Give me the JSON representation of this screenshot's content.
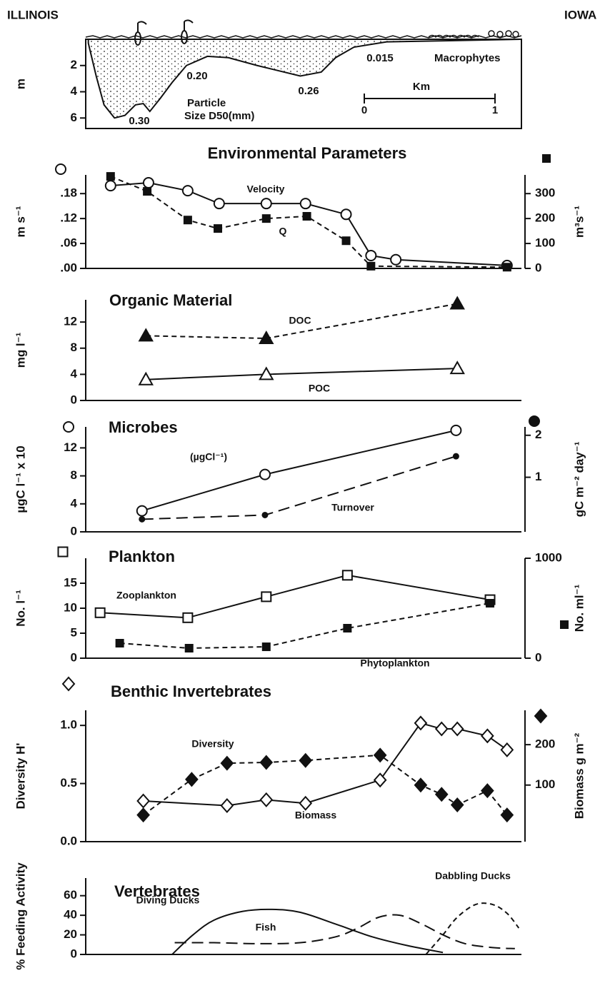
{
  "chart_data": [
    {
      "type": "area",
      "ylabel": "m",
      "x": [
        0.02,
        0.08,
        0.14,
        0.22,
        0.3,
        0.38,
        0.44,
        0.49,
        0.57,
        0.66,
        0.77,
        0.93,
        1.09,
        1.31,
        1.64,
        1.8,
        1.91,
        2.05,
        2.3,
        3.33
      ],
      "values": [
        0.3,
        2.8,
        5.0,
        6.0,
        5.8,
        5.0,
        4.9,
        5.5,
        4.5,
        3.3,
        2.0,
        1.3,
        1.4,
        2.0,
        2.8,
        2.5,
        1.4,
        0.6,
        0.2,
        0
      ],
      "xlim": [
        0,
        3.33
      ],
      "ylim": [
        6.8,
        0
      ],
      "yticks": [
        2,
        4,
        6
      ],
      "color": "#111111",
      "annotations": [
        "ILLINOIS",
        "IOWA",
        "0.30",
        "0.20",
        "0.26",
        "0.015",
        "Particle",
        "Size D50(mm)",
        "Macrophytes",
        "Km",
        "0",
        "1"
      ]
    },
    {
      "type": "line",
      "title": "Environmental Parameters",
      "ylabel": "m s⁻¹",
      "y2label": "m³s⁻¹",
      "xlim": [
        0,
        3.33
      ],
      "ylim": [
        0,
        0.225
      ],
      "y2lim": [
        0,
        375
      ],
      "yticks": [
        {
          "value": 0,
          "label": ".00"
        },
        {
          "value": 0.06,
          "label": ".06"
        },
        {
          "value": 0.12,
          "label": ".12"
        },
        {
          "value": 0.18,
          "label": ".18"
        }
      ],
      "y2ticks": [
        0,
        100,
        200,
        300
      ],
      "series": [
        {
          "name": "Velocity",
          "color": "#111111",
          "marker": "circle",
          "filled": false,
          "line_style": "solid",
          "x": [
            0.19,
            0.48,
            0.78,
            1.02,
            1.38,
            1.68,
            1.99,
            2.18,
            2.37,
            3.22
          ],
          "values": [
            0.199,
            0.206,
            0.187,
            0.156,
            0.156,
            0.156,
            0.13,
            0.031,
            0.021,
            0.007
          ]
        },
        {
          "name": "Q",
          "color": "#111111",
          "marker": "square",
          "filled": true,
          "line_style": "dashed",
          "axis": "y2",
          "x": [
            0.19,
            0.47,
            0.78,
            1.01,
            1.38,
            1.69,
            1.99,
            2.18,
            3.22
          ],
          "values": [
            369,
            309,
            194,
            160,
            200,
            209,
            111,
            9,
            5
          ]
        }
      ]
    },
    {
      "type": "line",
      "title": "Organic Material",
      "ylabel": "mg l⁻¹",
      "xlim": [
        0,
        3.33
      ],
      "ylim": [
        0,
        15.4
      ],
      "yticks": [
        0,
        4,
        8,
        12
      ],
      "series": [
        {
          "name": "DOC",
          "color": "#111111",
          "marker": "triangle",
          "filled": true,
          "line_style": "dashed",
          "x": [
            0.46,
            1.38,
            2.84
          ],
          "values": [
            9.9,
            9.5,
            14.8
          ]
        },
        {
          "name": "POC",
          "color": "#111111",
          "marker": "triangle",
          "filled": false,
          "line_style": "solid",
          "x": [
            0.46,
            1.38,
            2.84
          ],
          "values": [
            3.2,
            4.0,
            4.9
          ]
        }
      ]
    },
    {
      "type": "line",
      "title": "Microbes",
      "ylabel": "µgC l⁻¹ x 10",
      "y2label": "gC m⁻² day⁻¹",
      "xlim": [
        0,
        3.33
      ],
      "ylim": [
        0,
        15
      ],
      "yticks": [
        0,
        4,
        8,
        12
      ],
      "y2lim": [
        -0.3,
        2.2
      ],
      "y2ticks": [
        1,
        2
      ],
      "series": [
        {
          "name": "(µgCl⁻¹)",
          "color": "#111111",
          "marker": "circle",
          "filled": false,
          "line_style": "solid",
          "x": [
            0.43,
            1.37,
            2.83
          ],
          "values": [
            3.0,
            8.2,
            14.5
          ]
        },
        {
          "name": "Turnover",
          "color": "#111111",
          "marker": "dot",
          "filled": true,
          "line_style": "long-dashed",
          "axis": "y2",
          "x": [
            0.43,
            1.37,
            2.83
          ],
          "values": [
            0,
            0.1,
            1.5
          ]
        }
      ]
    },
    {
      "type": "line",
      "title": "Plankton",
      "ylabel": "No. l⁻¹",
      "y2label": "No. ml⁻¹",
      "xlim": [
        0,
        3.33
      ],
      "ylim": [
        0,
        20
      ],
      "yticks": [
        0,
        5,
        10,
        15
      ],
      "y2lim": [
        0,
        1000
      ],
      "y2ticks": [
        0,
        1000
      ],
      "series": [
        {
          "name": "Zooplankton",
          "color": "#111111",
          "marker": "square",
          "filled": false,
          "line_style": "solid",
          "x": [
            0.11,
            0.78,
            1.38,
            2.0,
            3.09
          ],
          "values": [
            9.1,
            8.1,
            12.3,
            16.6,
            11.7
          ]
        },
        {
          "name": "Phytoplankton",
          "color": "#111111",
          "marker": "square",
          "filled": true,
          "line_style": "dashed",
          "axis": "y2",
          "x": [
            0.26,
            0.79,
            1.38,
            2.0,
            3.09
          ],
          "values": [
            150,
            100,
            114,
            300,
            550
          ]
        }
      ]
    },
    {
      "type": "line",
      "title": "Benthic Invertebrates",
      "ylabel": "Diversity H'",
      "y2label": "Biomass g m⁻²",
      "xlim": [
        0,
        3.33
      ],
      "ylim": [
        0,
        1.13
      ],
      "y2lim": [
        -40,
        285
      ],
      "yticks": [
        {
          "value": 0,
          "label": "0.0"
        },
        0.5,
        {
          "value": 1,
          "label": "1.0"
        }
      ],
      "y2ticks": [
        100,
        200
      ],
      "series": [
        {
          "name": "Diversity",
          "color": "#111111",
          "marker": "diamond",
          "filled": false,
          "line_style": "solid",
          "x": [
            0.44,
            1.08,
            1.38,
            1.68,
            2.25,
            2.56,
            2.72,
            2.84,
            3.07,
            3.22
          ],
          "values": [
            0.35,
            0.31,
            0.36,
            0.33,
            0.53,
            1.02,
            0.97,
            0.97,
            0.91,
            0.79
          ]
        },
        {
          "name": "Biomass",
          "color": "#111111",
          "marker": "diamond",
          "filled": true,
          "line_style": "dashed",
          "axis": "y2",
          "x": [
            0.44,
            0.81,
            1.08,
            1.38,
            1.68,
            2.25,
            2.56,
            2.72,
            2.84,
            3.07,
            3.22
          ],
          "values": [
            26,
            114,
            154,
            156,
            161,
            174,
            100,
            77,
            51,
            86,
            26
          ]
        }
      ]
    },
    {
      "type": "line",
      "title": "Vertebrates",
      "ylabel": "% Feeding Activity",
      "smooth": true,
      "xlim": [
        0,
        3.33
      ],
      "ylim": [
        0,
        78
      ],
      "yticks": [
        0,
        20,
        40,
        60
      ],
      "series": [
        {
          "name": "Diving Ducks",
          "color": "#111111",
          "marker": null,
          "line_style": "solid",
          "x": [
            0.66,
            0.82,
            0.98,
            1.2,
            1.42,
            1.64,
            1.91,
            2.19,
            2.46,
            2.73
          ],
          "values": [
            0,
            20,
            35,
            44,
            46,
            43,
            31,
            18,
            9,
            2
          ]
        },
        {
          "name": "Fish",
          "color": "#111111",
          "marker": null,
          "line_style": "long-dashed",
          "x": [
            0.68,
            0.98,
            1.31,
            1.64,
            1.91,
            2.08,
            2.24,
            2.4,
            2.57,
            2.73,
            2.9,
            3.11,
            3.28
          ],
          "values": [
            12,
            12,
            11,
            12,
            18,
            27,
            38,
            40,
            31,
            20,
            11,
            7,
            6
          ]
        },
        {
          "name": "Dabbling Ducks",
          "color": "#111111",
          "marker": null,
          "line_style": "dashed",
          "x": [
            2.6,
            2.73,
            2.84,
            2.98,
            3.11,
            3.22,
            3.31
          ],
          "values": [
            0,
            20,
            38,
            51,
            51,
            42,
            27
          ]
        }
      ]
    }
  ]
}
